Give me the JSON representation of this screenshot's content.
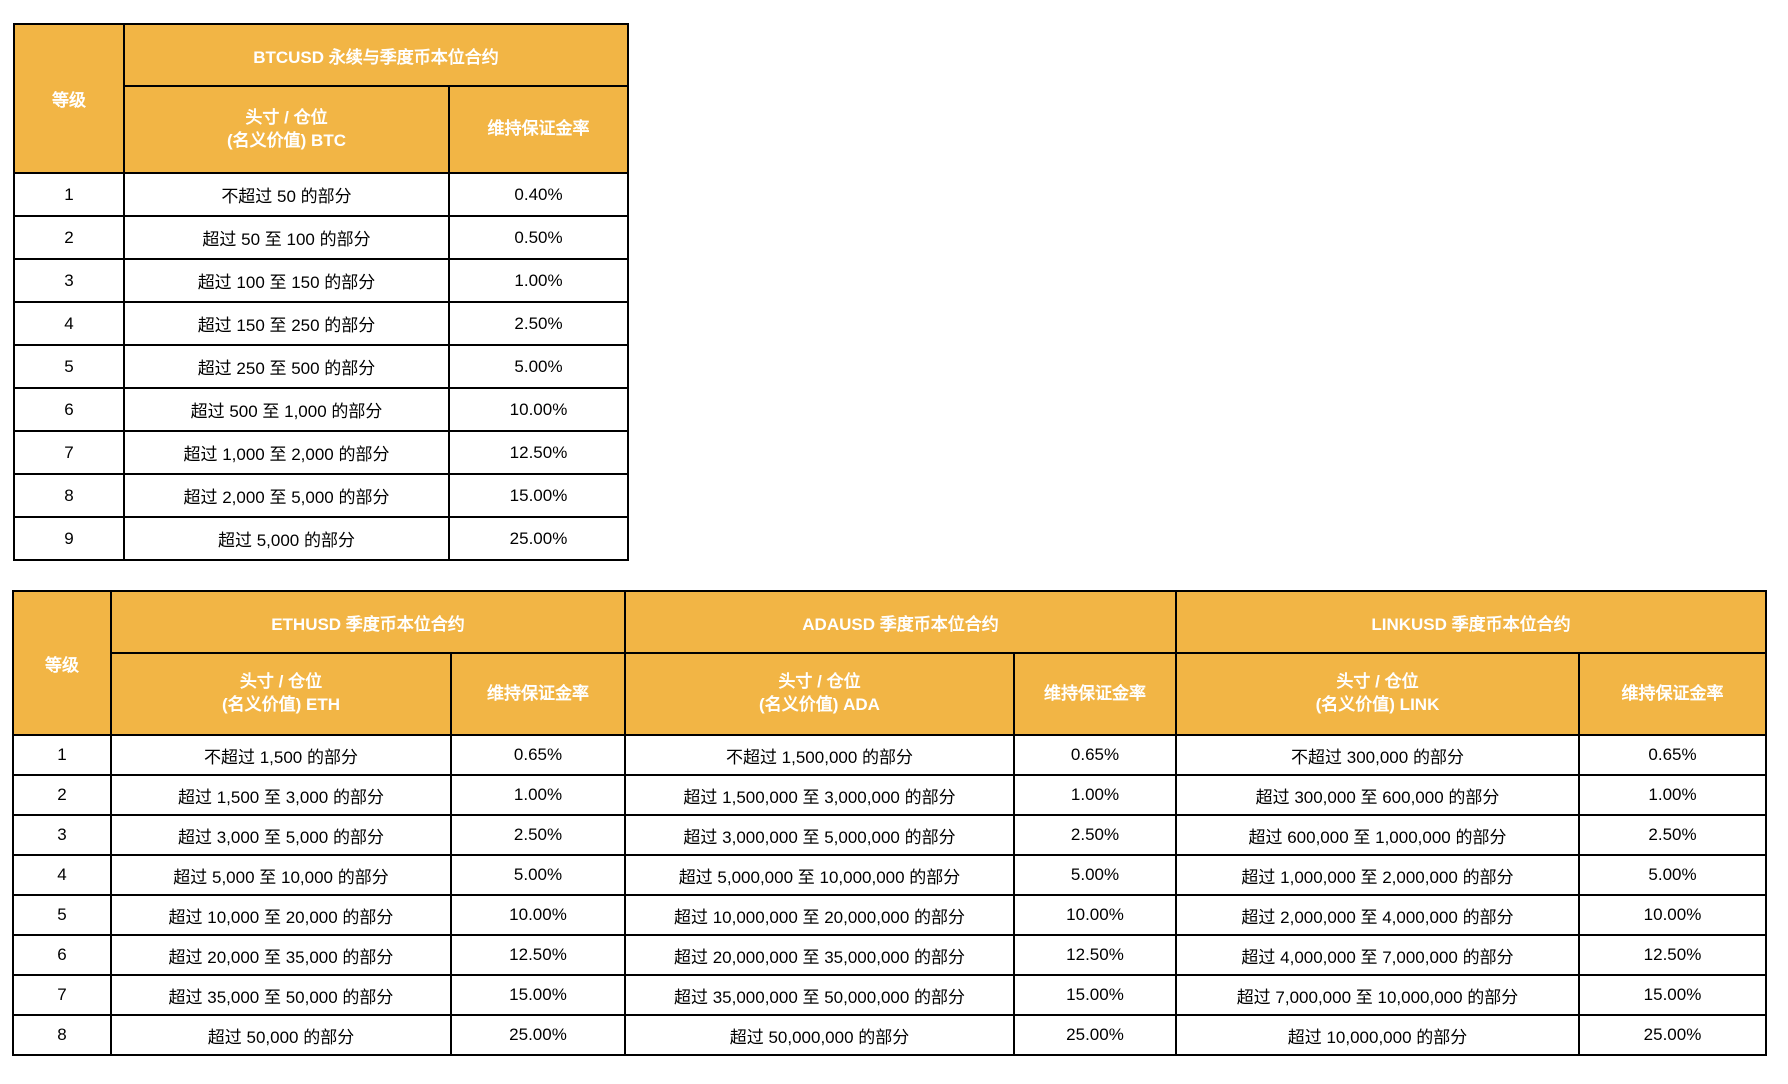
{
  "colors": {
    "header_bg": "#F2B545",
    "header_text": "#FFFFFF",
    "body_text": "#000000",
    "border": "#000000",
    "page_bg": "#FFFFFF"
  },
  "table1": {
    "title": "BTCUSD 永续与季度币本位合约",
    "level_header": "等级",
    "position_header_line1": "头寸 / 仓位",
    "position_header_line2": "(名义价值) BTC",
    "rate_header": "维持保证金率",
    "rows": [
      {
        "level": "1",
        "position": "不超过 50 的部分",
        "rate": "0.40%"
      },
      {
        "level": "2",
        "position": "超过 50 至 100 的部分",
        "rate": "0.50%"
      },
      {
        "level": "3",
        "position": "超过 100 至 150 的部分",
        "rate": "1.00%"
      },
      {
        "level": "4",
        "position": "超过 150 至 250 的部分",
        "rate": "2.50%"
      },
      {
        "level": "5",
        "position": "超过 250 至 500 的部分",
        "rate": "5.00%"
      },
      {
        "level": "6",
        "position": "超过 500 至 1,000 的部分",
        "rate": "10.00%"
      },
      {
        "level": "7",
        "position": "超过 1,000 至 2,000 的部分",
        "rate": "12.50%"
      },
      {
        "level": "8",
        "position": "超过 2,000 至 5,000 的部分",
        "rate": "15.00%"
      },
      {
        "level": "9",
        "position": "超过 5,000 的部分",
        "rate": "25.00%"
      }
    ]
  },
  "table2": {
    "level_header": "等级",
    "sections": [
      {
        "title": "ETHUSD 季度币本位合约",
        "position_header_line1": "头寸 / 仓位",
        "position_header_line2": "(名义价值) ETH",
        "rate_header": "维持保证金率"
      },
      {
        "title": "ADAUSD 季度币本位合约",
        "position_header_line1": "头寸 / 仓位",
        "position_header_line2": "(名义价值) ADA",
        "rate_header": "维持保证金率"
      },
      {
        "title": "LINKUSD 季度币本位合约",
        "position_header_line1": "头寸 / 仓位",
        "position_header_line2": "(名义价值) LINK",
        "rate_header": "维持保证金率"
      }
    ],
    "rows": [
      {
        "level": "1",
        "eth": {
          "position": "不超过 1,500 的部分",
          "rate": "0.65%"
        },
        "ada": {
          "position": "不超过 1,500,000 的部分",
          "rate": "0.65%"
        },
        "link": {
          "position": "不超过 300,000 的部分",
          "rate": "0.65%"
        }
      },
      {
        "level": "2",
        "eth": {
          "position": "超过 1,500 至 3,000 的部分",
          "rate": "1.00%"
        },
        "ada": {
          "position": "超过 1,500,000 至 3,000,000 的部分",
          "rate": "1.00%"
        },
        "link": {
          "position": "超过 300,000 至 600,000 的部分",
          "rate": "1.00%"
        }
      },
      {
        "level": "3",
        "eth": {
          "position": "超过 3,000 至 5,000 的部分",
          "rate": "2.50%"
        },
        "ada": {
          "position": "超过 3,000,000 至 5,000,000 的部分",
          "rate": "2.50%"
        },
        "link": {
          "position": "超过 600,000 至 1,000,000 的部分",
          "rate": "2.50%"
        }
      },
      {
        "level": "4",
        "eth": {
          "position": "超过 5,000 至 10,000 的部分",
          "rate": "5.00%"
        },
        "ada": {
          "position": "超过 5,000,000 至 10,000,000 的部分",
          "rate": "5.00%"
        },
        "link": {
          "position": "超过 1,000,000 至 2,000,000 的部分",
          "rate": "5.00%"
        }
      },
      {
        "level": "5",
        "eth": {
          "position": "超过 10,000 至 20,000 的部分",
          "rate": "10.00%"
        },
        "ada": {
          "position": "超过 10,000,000 至 20,000,000 的部分",
          "rate": "10.00%"
        },
        "link": {
          "position": "超过 2,000,000 至 4,000,000 的部分",
          "rate": "10.00%"
        }
      },
      {
        "level": "6",
        "eth": {
          "position": "超过 20,000 至 35,000 的部分",
          "rate": "12.50%"
        },
        "ada": {
          "position": "超过 20,000,000 至 35,000,000 的部分",
          "rate": "12.50%"
        },
        "link": {
          "position": "超过 4,000,000 至 7,000,000 的部分",
          "rate": "12.50%"
        }
      },
      {
        "level": "7",
        "eth": {
          "position": "超过 35,000 至 50,000 的部分",
          "rate": "15.00%"
        },
        "ada": {
          "position": "超过 35,000,000 至 50,000,000 的部分",
          "rate": "15.00%"
        },
        "link": {
          "position": "超过 7,000,000 至 10,000,000 的部分",
          "rate": "15.00%"
        }
      },
      {
        "level": "8",
        "eth": {
          "position": "超过 50,000 的部分",
          "rate": "25.00%"
        },
        "ada": {
          "position": "超过 50,000,000 的部分",
          "rate": "25.00%"
        },
        "link": {
          "position": "超过 10,000,000 的部分",
          "rate": "25.00%"
        }
      }
    ]
  }
}
